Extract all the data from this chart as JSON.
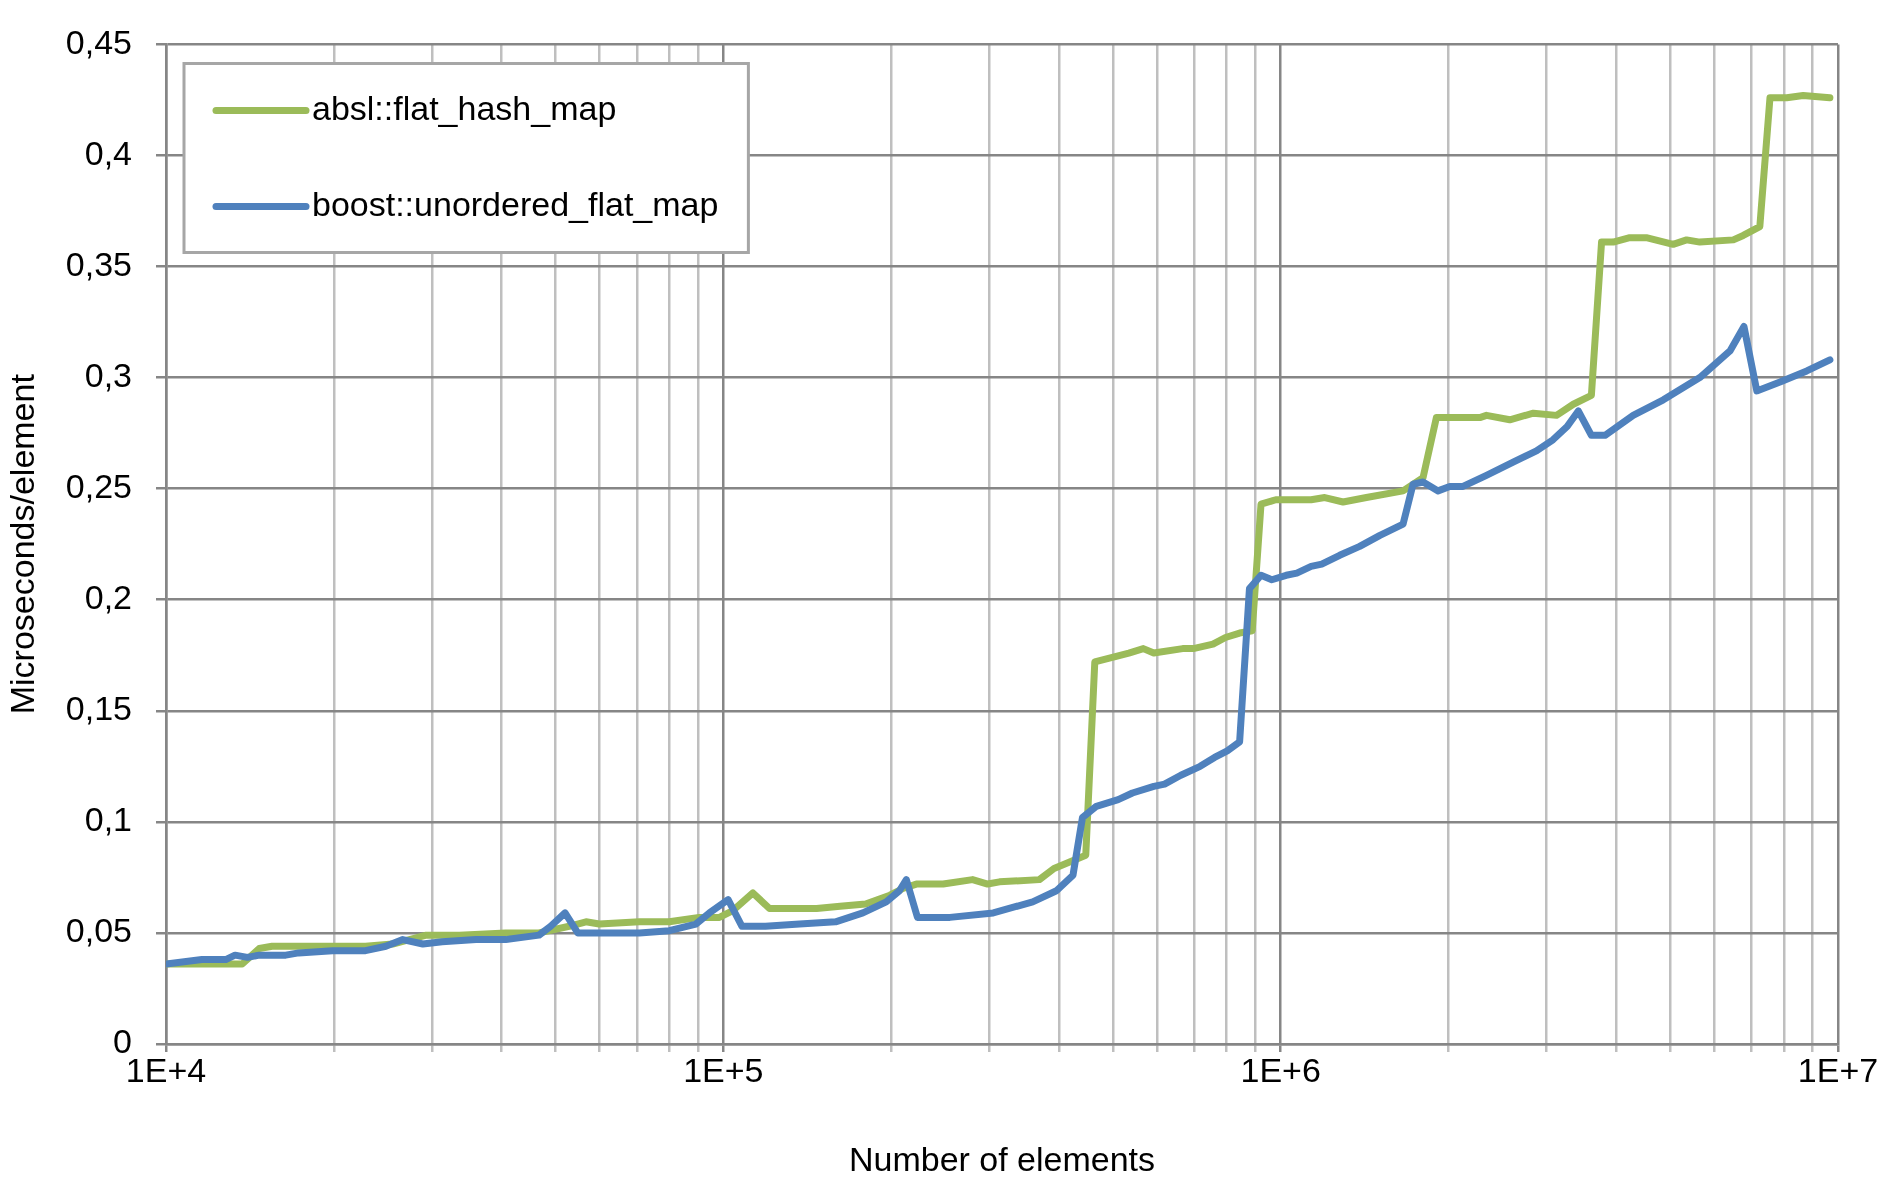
{
  "chart_data": {
    "type": "line",
    "xlabel": "Number of elements",
    "ylabel": "Microseconds/element",
    "series": [
      {
        "name": "absl::flat_hash_map",
        "color": "#9bbb59",
        "x": [
          10000,
          13700,
          14700,
          15500,
          19900,
          22800,
          25500,
          29300,
          33600,
          40700,
          46700,
          52900,
          56700,
          59900,
          70700,
          80000,
          90500,
          98400,
          104000,
          113000,
          121000,
          147000,
          162000,
          180000,
          199000,
          210000,
          222000,
          248000,
          280000,
          298000,
          313000,
          369000,
          392000,
          410000,
          447000,
          464000,
          534000,
          567000,
          592000,
          667000,
          697000,
          756000,
          796000,
          844000,
          889000,
          922000,
          980000,
          1134000,
          1200000,
          1294000,
          1425000,
          1658000,
          1801000,
          1903000,
          2277000,
          2340000,
          2577000,
          2840000,
          3126000,
          3350000,
          3610000,
          3765000,
          3950000,
          4230000,
          4530000,
          5060000,
          5350000,
          5650000,
          6490000,
          6760000,
          7240000,
          7550000,
          8090000,
          8660000,
          9670000
        ],
        "values": [
          0.036,
          0.036,
          0.043,
          0.044,
          0.044,
          0.044,
          0.045,
          0.049,
          0.049,
          0.05,
          0.05,
          0.053,
          0.055,
          0.054,
          0.055,
          0.055,
          0.057,
          0.057,
          0.06,
          0.068,
          0.061,
          0.061,
          0.062,
          0.063,
          0.067,
          0.07,
          0.072,
          0.072,
          0.074,
          0.072,
          0.073,
          0.074,
          0.079,
          0.081,
          0.085,
          0.172,
          0.176,
          0.178,
          0.176,
          0.178,
          0.178,
          0.18,
          0.183,
          0.185,
          0.186,
          0.243,
          0.245,
          0.245,
          0.246,
          0.244,
          0.246,
          0.249,
          0.255,
          0.282,
          0.282,
          0.283,
          0.281,
          0.284,
          0.283,
          0.288,
          0.292,
          0.361,
          0.361,
          0.363,
          0.363,
          0.36,
          0.362,
          0.361,
          0.362,
          0.364,
          0.368,
          0.426,
          0.426,
          0.427,
          0.426
        ]
      },
      {
        "name": "boost::unordered_flat_map",
        "color": "#4f81bd",
        "x": [
          10000,
          11600,
          12800,
          13300,
          14000,
          14700,
          16400,
          17300,
          19900,
          22800,
          24800,
          26600,
          28900,
          31300,
          36000,
          40700,
          46700,
          49000,
          52000,
          54800,
          63300,
          70700,
          80000,
          89300,
          94400,
          102000,
          108000,
          119000,
          137000,
          159000,
          178000,
          196000,
          207000,
          213000,
          223000,
          255000,
          305000,
          359000,
          396000,
          424000,
          441000,
          467000,
          511000,
          542000,
          592000,
          619000,
          662000,
          717000,
          761000,
          802000,
          844000,
          879000,
          922000,
          964000,
          1023000,
          1069000,
          1134000,
          1185000,
          1276000,
          1386000,
          1507000,
          1658000,
          1728000,
          1801000,
          1916000,
          2011000,
          2124000,
          2340000,
          2613000,
          2877000,
          3080000,
          3266000,
          3420000,
          3610000,
          3820000,
          4290000,
          4860000,
          5650000,
          6400000,
          6780000,
          7150000,
          7870000,
          8790000,
          9670000
        ],
        "values": [
          0.036,
          0.038,
          0.038,
          0.04,
          0.039,
          0.04,
          0.04,
          0.041,
          0.042,
          0.042,
          0.044,
          0.047,
          0.045,
          0.046,
          0.047,
          0.047,
          0.049,
          0.053,
          0.059,
          0.05,
          0.05,
          0.05,
          0.051,
          0.054,
          0.059,
          0.065,
          0.053,
          0.053,
          0.054,
          0.055,
          0.059,
          0.064,
          0.069,
          0.074,
          0.057,
          0.057,
          0.059,
          0.064,
          0.069,
          0.076,
          0.102,
          0.107,
          0.11,
          0.113,
          0.116,
          0.117,
          0.121,
          0.125,
          0.129,
          0.132,
          0.136,
          0.205,
          0.211,
          0.209,
          0.211,
          0.212,
          0.215,
          0.216,
          0.22,
          0.224,
          0.229,
          0.234,
          0.252,
          0.253,
          0.249,
          0.251,
          0.251,
          0.256,
          0.262,
          0.267,
          0.272,
          0.278,
          0.285,
          0.274,
          0.274,
          0.283,
          0.29,
          0.3,
          0.312,
          0.323,
          0.294,
          0.298,
          0.303,
          0.308
        ]
      }
    ],
    "log": "x",
    "xlim": [
      10000,
      10000000
    ],
    "xticks": [
      {
        "value": 10000,
        "label": "1E+4"
      },
      {
        "value": 20000,
        "label": null
      },
      {
        "value": 30000,
        "label": null
      },
      {
        "value": 40000,
        "label": null
      },
      {
        "value": 50000,
        "label": null
      },
      {
        "value": 60000,
        "label": null
      },
      {
        "value": 70000,
        "label": null
      },
      {
        "value": 80000,
        "label": null
      },
      {
        "value": 90000,
        "label": null
      },
      {
        "value": 100000,
        "label": "1E+5"
      },
      {
        "value": 200000,
        "label": null
      },
      {
        "value": 300000,
        "label": null
      },
      {
        "value": 400000,
        "label": null
      },
      {
        "value": 500000,
        "label": null
      },
      {
        "value": 600000,
        "label": null
      },
      {
        "value": 700000,
        "label": null
      },
      {
        "value": 800000,
        "label": null
      },
      {
        "value": 900000,
        "label": null
      },
      {
        "value": 1000000,
        "label": "1E+6"
      },
      {
        "value": 2000000,
        "label": null
      },
      {
        "value": 3000000,
        "label": null
      },
      {
        "value": 4000000,
        "label": null
      },
      {
        "value": 5000000,
        "label": null
      },
      {
        "value": 6000000,
        "label": null
      },
      {
        "value": 7000000,
        "label": null
      },
      {
        "value": 8000000,
        "label": null
      },
      {
        "value": 9000000,
        "label": null
      },
      {
        "value": 10000000,
        "label": "1E+7"
      }
    ],
    "ylim": [
      0,
      0.45
    ],
    "yticks": [
      0,
      {
        "value": 0.05,
        "label": "0,05"
      },
      {
        "value": 0.1,
        "label": "0,1"
      },
      {
        "value": 0.15,
        "label": "0,15"
      },
      {
        "value": 0.2,
        "label": "0,2"
      },
      {
        "value": 0.25,
        "label": "0,25"
      },
      {
        "value": 0.3,
        "label": "0,3"
      },
      {
        "value": 0.35,
        "label": "0,35"
      },
      {
        "value": 0.4,
        "label": "0,4"
      },
      {
        "value": 0.45,
        "label": "0,45"
      }
    ],
    "grid": true,
    "legend": "top left",
    "line_style": "solid"
  }
}
